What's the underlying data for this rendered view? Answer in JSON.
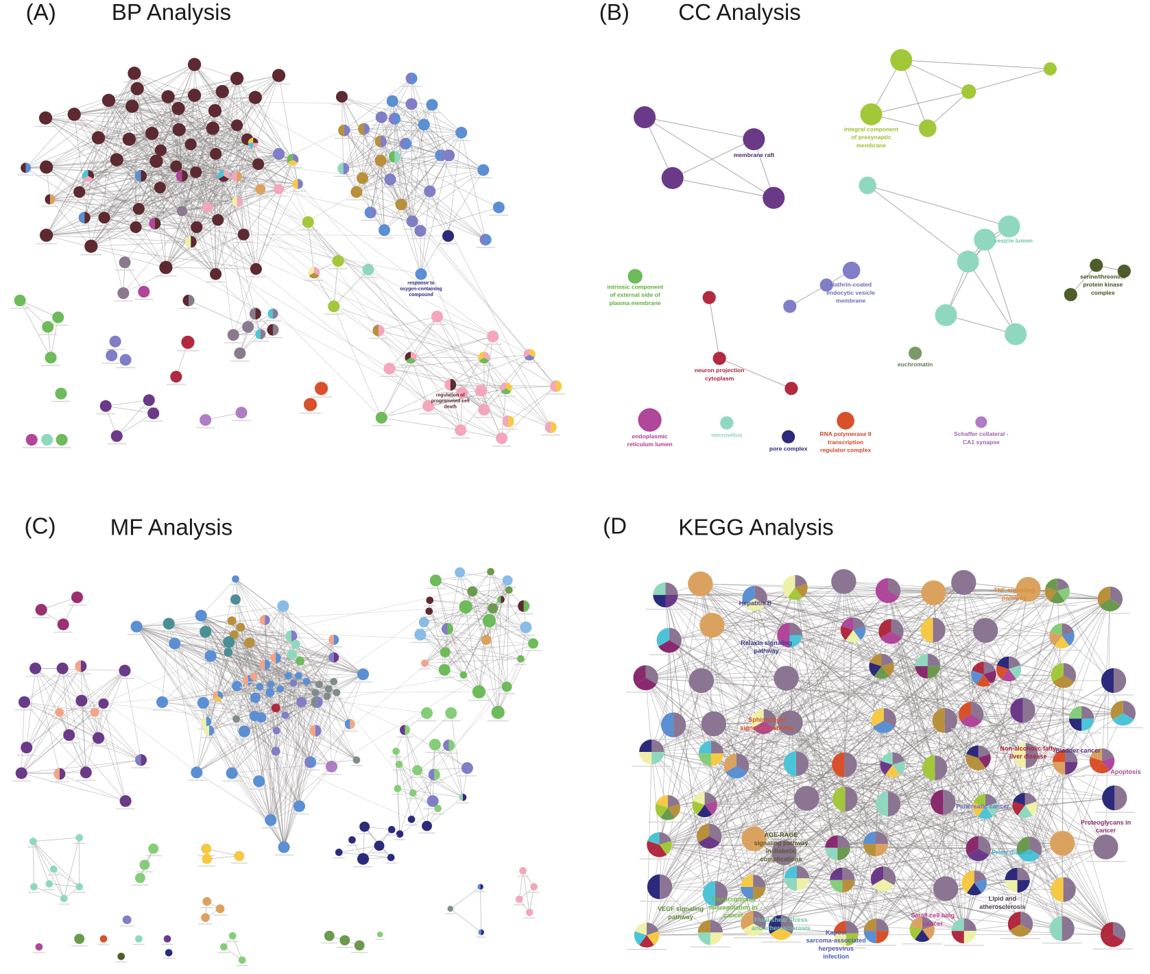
{
  "palette": {
    "br": "#5c2a30",
    "mv": "#8a7a8e",
    "pk": "#f4a6ba",
    "bl": "#5b8fd4",
    "lv": "#7f7ec6",
    "gd": "#b8903c",
    "nv": "#2c2a7c",
    "yg": "#a2c83a",
    "gr": "#6dbb5a",
    "lg": "#86cd7a",
    "tl": "#8fd8bf",
    "rd": "#b12a3f",
    "or": "#d9512b",
    "pu": "#6a3a88",
    "mg": "#b0479a",
    "vi": "#b07cc4",
    "ye": "#f6c945",
    "cy": "#4cc4d8",
    "ol": "#4d5e2b",
    "lb": "#88bce6",
    "sa": "#f3a487",
    "ta": "#dba25f",
    "cr": "#eef0a8",
    "dg": "#6b9a4e",
    "gy": "#7f8c8a",
    "mp": "#9c3070",
    "km": "#8b7592",
    "kp": "#8a2a6e",
    "mt": "#4a8f95",
    "ca": "#7a9a6a",
    "edge": "#8d8787"
  },
  "panels": {
    "A": {
      "letter": "(A)",
      "title": "BP Analysis",
      "labels": [
        {
          "id": "oxy",
          "lines": [
            "response to",
            "oxygen-containing",
            "compound"
          ],
          "color": "#2c2a7c"
        },
        {
          "id": "pcd",
          "lines": [
            "regulation of",
            "programmed cell",
            "death"
          ],
          "color": "#5c2a30"
        }
      ]
    },
    "B": {
      "letter": "(B)",
      "title": "CC Analysis",
      "labels": [
        {
          "id": "raft",
          "lines": [
            "membrane raft"
          ],
          "color": "#4a2a6a"
        },
        {
          "id": "presyn",
          "lines": [
            "integral component",
            "of presynaptic",
            "membrane"
          ],
          "color": "#9bbf2a"
        },
        {
          "id": "vlumen",
          "lines": [
            "vesicle lumen"
          ],
          "color": "#6fc4a8"
        },
        {
          "id": "stpk",
          "lines": [
            "serine/threonine",
            "protein kinase",
            "complex"
          ],
          "color": "#3f4f1f"
        },
        {
          "id": "intrinsic",
          "lines": [
            "intrinsic component",
            "of external side of",
            "plasma membrane"
          ],
          "color": "#5aaf3a"
        },
        {
          "id": "clathrin",
          "lines": [
            "clathrin-coated",
            "endocytic vesicle",
            "membrane"
          ],
          "color": "#6a6ab0"
        },
        {
          "id": "neuron",
          "lines": [
            "neuron projection",
            "cytoplasm"
          ],
          "color": "#a8243a"
        },
        {
          "id": "euchrom",
          "lines": [
            "euchromatin"
          ],
          "color": "#5a7a4a"
        },
        {
          "id": "er",
          "lines": [
            "endoplasmic",
            "reticulum lumen"
          ],
          "color": "#b03a90"
        },
        {
          "id": "microv",
          "lines": [
            "microvillus"
          ],
          "color": "#8fd6bc"
        },
        {
          "id": "pore",
          "lines": [
            "pore complex"
          ],
          "color": "#2a2a7a"
        },
        {
          "id": "rnap",
          "lines": [
            "RNA polymerase II",
            "transcription",
            "regulator complex"
          ],
          "color": "#d0452a"
        },
        {
          "id": "schaffer",
          "lines": [
            "Schaffer collateral -",
            "CA1 synapse"
          ],
          "color": "#a060b0"
        }
      ]
    },
    "C": {
      "letter": "(C)",
      "title": "MF Analysis",
      "labels": []
    },
    "D": {
      "letter": "(D",
      "title": "KEGG Analysis",
      "labels": [
        {
          "id": "hepb",
          "lines": [
            "Hepatitis B"
          ],
          "color": "#4b3a8f"
        },
        {
          "id": "relaxin",
          "lines": [
            "Relaxin signaling",
            "pathway"
          ],
          "color": "#3b3a8a"
        },
        {
          "id": "tnf",
          "lines": [
            "TNF signaling",
            "pathway"
          ],
          "color": "#d98c3a"
        },
        {
          "id": "sphingo",
          "lines": [
            "Sphingolipid",
            "signaling pathway"
          ],
          "color": "#d2552e"
        },
        {
          "id": "nafld",
          "lines": [
            "Non-alcoholic fatty",
            "liver disease"
          ],
          "color": "#a8243a"
        },
        {
          "id": "bladder",
          "lines": [
            "Bladder cancer"
          ],
          "color": "#5a2a7a"
        },
        {
          "id": "apoptosis",
          "lines": [
            "Apoptosis"
          ],
          "color": "#a54a9c"
        },
        {
          "id": "pancreatic",
          "lines": [
            "Pancreatic cancer"
          ],
          "color": "#6f6fc4"
        },
        {
          "id": "proteo",
          "lines": [
            "Proteoglycans in",
            "cancer"
          ],
          "color": "#8a2a6a"
        },
        {
          "id": "agerage",
          "lines": [
            "AGE-RAGE",
            "signaling pathway",
            "in diabetic",
            "complications"
          ],
          "color": "#5a5a2a"
        },
        {
          "id": "prion",
          "lines": [
            "Prion disease"
          ],
          "color": "#3ab0c8"
        },
        {
          "id": "vegf",
          "lines": [
            "VEGF signaling",
            "pathway"
          ],
          "color": "#5a8a3a"
        },
        {
          "id": "transmis",
          "lines": [
            "Transcriptional",
            "misregulation in",
            "cancer"
          ],
          "color": "#6fb83a"
        },
        {
          "id": "fluid",
          "lines": [
            "Fluid shear stress",
            "and atherosclerosis"
          ],
          "color": "#6fc4a8"
        },
        {
          "id": "kshv",
          "lines": [
            "Kaposi",
            "sarcoma-associated",
            "herpesvirus",
            "infection"
          ],
          "color": "#4a5ab0"
        },
        {
          "id": "sclc",
          "lines": [
            "Small cell lung",
            "cancer"
          ],
          "color": "#c03a8a"
        },
        {
          "id": "lipid",
          "lines": [
            "Lipid and",
            "atherosclerosis"
          ],
          "color": "#4a3a4a"
        }
      ]
    }
  }
}
